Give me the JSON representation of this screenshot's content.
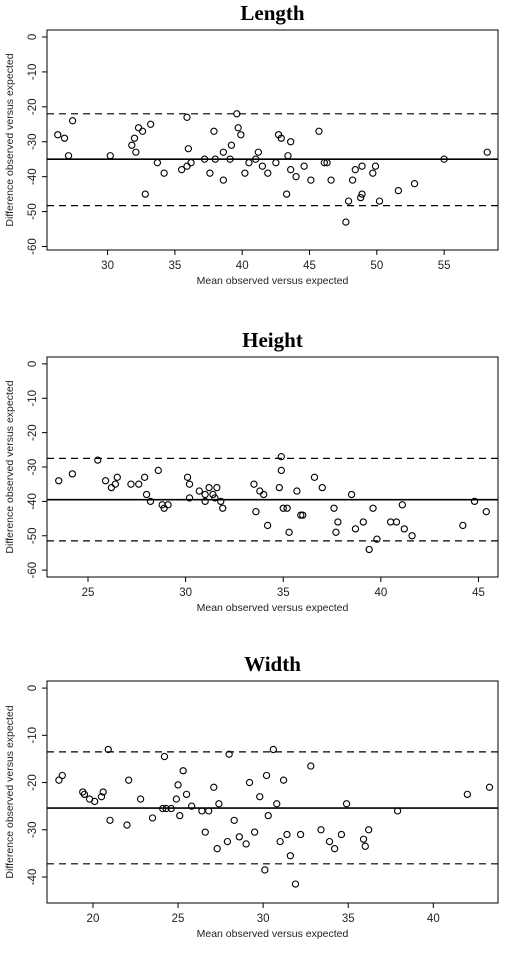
{
  "chart_data": [
    {
      "type": "scatter",
      "title": "Length",
      "xlabel": "Mean observed versus expected",
      "ylabel": "Difference observed versus expected",
      "xlim": [
        25.5,
        59
      ],
      "ylim": [
        -61,
        2
      ],
      "xticks": [
        30,
        35,
        40,
        45,
        50,
        55
      ],
      "yticks": [
        0,
        -10,
        -20,
        -30,
        -40,
        -50,
        -60
      ],
      "mean": -35,
      "loa_upper": -22,
      "loa_lower": -48.3,
      "grid": false,
      "points": [
        [
          26.3,
          -28
        ],
        [
          26.8,
          -29
        ],
        [
          27.1,
          -34
        ],
        [
          27.4,
          -24
        ],
        [
          30.2,
          -34
        ],
        [
          31.8,
          -31
        ],
        [
          32.0,
          -29
        ],
        [
          32.1,
          -33
        ],
        [
          32.3,
          -26
        ],
        [
          32.6,
          -27
        ],
        [
          32.8,
          -45
        ],
        [
          33.2,
          -25
        ],
        [
          33.7,
          -36
        ],
        [
          34.2,
          -39
        ],
        [
          35.5,
          -38
        ],
        [
          35.9,
          -37
        ],
        [
          35.9,
          -23
        ],
        [
          36.0,
          -32
        ],
        [
          36.2,
          -36
        ],
        [
          37.2,
          -35
        ],
        [
          37.6,
          -39
        ],
        [
          37.9,
          -27
        ],
        [
          38.0,
          -35
        ],
        [
          38.6,
          -41
        ],
        [
          38.6,
          -33
        ],
        [
          39.1,
          -35
        ],
        [
          39.2,
          -31
        ],
        [
          39.6,
          -22
        ],
        [
          39.7,
          -26
        ],
        [
          39.9,
          -28
        ],
        [
          40.2,
          -39
        ],
        [
          40.5,
          -36
        ],
        [
          41.0,
          -35
        ],
        [
          41.2,
          -33
        ],
        [
          41.5,
          -37
        ],
        [
          41.9,
          -39
        ],
        [
          42.5,
          -36
        ],
        [
          42.7,
          -28
        ],
        [
          42.9,
          -29
        ],
        [
          43.3,
          -45
        ],
        [
          43.4,
          -34
        ],
        [
          43.6,
          -38
        ],
        [
          43.6,
          -30
        ],
        [
          44.0,
          -40
        ],
        [
          44.6,
          -37
        ],
        [
          45.1,
          -41
        ],
        [
          45.7,
          -27
        ],
        [
          46.1,
          -36
        ],
        [
          46.3,
          -36
        ],
        [
          46.6,
          -41
        ],
        [
          47.7,
          -53
        ],
        [
          47.9,
          -47
        ],
        [
          48.2,
          -41
        ],
        [
          48.4,
          -38
        ],
        [
          48.8,
          -46
        ],
        [
          48.9,
          -45
        ],
        [
          48.9,
          -37
        ],
        [
          49.7,
          -39
        ],
        [
          49.9,
          -37
        ],
        [
          50.2,
          -47
        ],
        [
          51.6,
          -44
        ],
        [
          52.8,
          -42
        ],
        [
          55.0,
          -35
        ],
        [
          58.2,
          -33
        ]
      ]
    },
    {
      "type": "scatter",
      "title": "Height",
      "xlabel": "Mean observed versus expected",
      "ylabel": "Difference observed versus expected",
      "xlim": [
        22.9,
        46
      ],
      "ylim": [
        -62,
        2
      ],
      "xticks": [
        25,
        30,
        35,
        40,
        45
      ],
      "yticks": [
        0,
        -10,
        -20,
        -30,
        -40,
        -50,
        -60
      ],
      "mean": -39.5,
      "loa_upper": -27.5,
      "loa_lower": -51.5,
      "grid": false,
      "points": [
        [
          23.5,
          -34
        ],
        [
          24.2,
          -32
        ],
        [
          25.5,
          -28
        ],
        [
          25.9,
          -34
        ],
        [
          26.2,
          -36
        ],
        [
          26.4,
          -35
        ],
        [
          26.5,
          -33
        ],
        [
          27.2,
          -35
        ],
        [
          27.6,
          -35
        ],
        [
          27.9,
          -33
        ],
        [
          28.0,
          -38
        ],
        [
          28.2,
          -40
        ],
        [
          28.6,
          -31
        ],
        [
          28.8,
          -41
        ],
        [
          28.9,
          -42
        ],
        [
          29.1,
          -41
        ],
        [
          30.1,
          -33
        ],
        [
          30.2,
          -35
        ],
        [
          30.2,
          -39
        ],
        [
          30.7,
          -37
        ],
        [
          31.0,
          -38
        ],
        [
          31.0,
          -40
        ],
        [
          31.2,
          -36
        ],
        [
          31.4,
          -38
        ],
        [
          31.5,
          -39
        ],
        [
          31.6,
          -36
        ],
        [
          31.8,
          -40
        ],
        [
          31.9,
          -42
        ],
        [
          33.5,
          -35
        ],
        [
          33.6,
          -43
        ],
        [
          33.8,
          -37
        ],
        [
          34.0,
          -38
        ],
        [
          34.2,
          -47
        ],
        [
          34.8,
          -36
        ],
        [
          34.9,
          -31
        ],
        [
          34.9,
          -27
        ],
        [
          35.0,
          -42
        ],
        [
          35.2,
          -42
        ],
        [
          35.3,
          -49
        ],
        [
          35.7,
          -37
        ],
        [
          35.9,
          -44
        ],
        [
          36.0,
          -44
        ],
        [
          36.6,
          -33
        ],
        [
          37.0,
          -36
        ],
        [
          37.6,
          -42
        ],
        [
          37.7,
          -49
        ],
        [
          37.8,
          -46
        ],
        [
          38.5,
          -38
        ],
        [
          38.7,
          -48
        ],
        [
          39.1,
          -46
        ],
        [
          39.4,
          -54
        ],
        [
          39.6,
          -42
        ],
        [
          39.8,
          -51
        ],
        [
          40.5,
          -46
        ],
        [
          40.8,
          -46
        ],
        [
          41.1,
          -41
        ],
        [
          41.2,
          -48
        ],
        [
          41.6,
          -50
        ],
        [
          44.2,
          -47
        ],
        [
          44.8,
          -40
        ],
        [
          45.4,
          -43
        ]
      ]
    },
    {
      "type": "scatter",
      "title": "Width",
      "xlabel": "Mean observed versus expected",
      "ylabel": "Difference observed versus expected",
      "xlim": [
        17.3,
        43.8
      ],
      "ylim": [
        -45.5,
        1.5
      ],
      "xticks": [
        20,
        25,
        30,
        35,
        40
      ],
      "yticks": [
        0,
        -10,
        -20,
        -30,
        -40
      ],
      "mean": -25.4,
      "loa_upper": -13.5,
      "loa_lower": -37.2,
      "grid": false,
      "points": [
        [
          18.0,
          -19.5
        ],
        [
          18.2,
          -18.5
        ],
        [
          19.4,
          -22.0
        ],
        [
          19.5,
          -22.5
        ],
        [
          19.8,
          -23.5
        ],
        [
          20.1,
          -24.0
        ],
        [
          20.5,
          -23.0
        ],
        [
          20.6,
          -22.0
        ],
        [
          20.9,
          -13.0
        ],
        [
          21.0,
          -28.0
        ],
        [
          22.0,
          -29.0
        ],
        [
          22.1,
          -19.5
        ],
        [
          22.8,
          -23.5
        ],
        [
          23.5,
          -27.5
        ],
        [
          24.1,
          -25.5
        ],
        [
          24.2,
          -14.5
        ],
        [
          24.3,
          -25.5
        ],
        [
          24.6,
          -25.5
        ],
        [
          24.9,
          -23.5
        ],
        [
          25.0,
          -20.5
        ],
        [
          25.1,
          -27.0
        ],
        [
          25.3,
          -17.5
        ],
        [
          25.5,
          -22.5
        ],
        [
          25.8,
          -25.0
        ],
        [
          26.4,
          -26.0
        ],
        [
          26.6,
          -30.5
        ],
        [
          26.8,
          -26.0
        ],
        [
          27.1,
          -21.0
        ],
        [
          27.3,
          -34.0
        ],
        [
          27.4,
          -24.5
        ],
        [
          27.9,
          -32.5
        ],
        [
          28.0,
          -14.0
        ],
        [
          28.3,
          -28.0
        ],
        [
          28.6,
          -31.5
        ],
        [
          29.0,
          -33.0
        ],
        [
          29.2,
          -20.0
        ],
        [
          29.5,
          -30.5
        ],
        [
          29.8,
          -23.0
        ],
        [
          30.1,
          -38.5
        ],
        [
          30.2,
          -18.5
        ],
        [
          30.3,
          -27.0
        ],
        [
          30.6,
          -13.0
        ],
        [
          30.8,
          -24.5
        ],
        [
          31.0,
          -32.5
        ],
        [
          31.2,
          -19.5
        ],
        [
          31.4,
          -31.0
        ],
        [
          31.6,
          -35.5
        ],
        [
          31.9,
          -41.5
        ],
        [
          32.2,
          -31.0
        ],
        [
          32.8,
          -16.5
        ],
        [
          33.4,
          -30.0
        ],
        [
          33.9,
          -32.5
        ],
        [
          34.2,
          -34.0
        ],
        [
          34.6,
          -31.0
        ],
        [
          34.9,
          -24.5
        ],
        [
          35.9,
          -32.0
        ],
        [
          36.0,
          -33.5
        ],
        [
          36.2,
          -30.0
        ],
        [
          37.9,
          -26.0
        ],
        [
          42.0,
          -22.5
        ],
        [
          43.3,
          -21.0
        ]
      ]
    }
  ]
}
